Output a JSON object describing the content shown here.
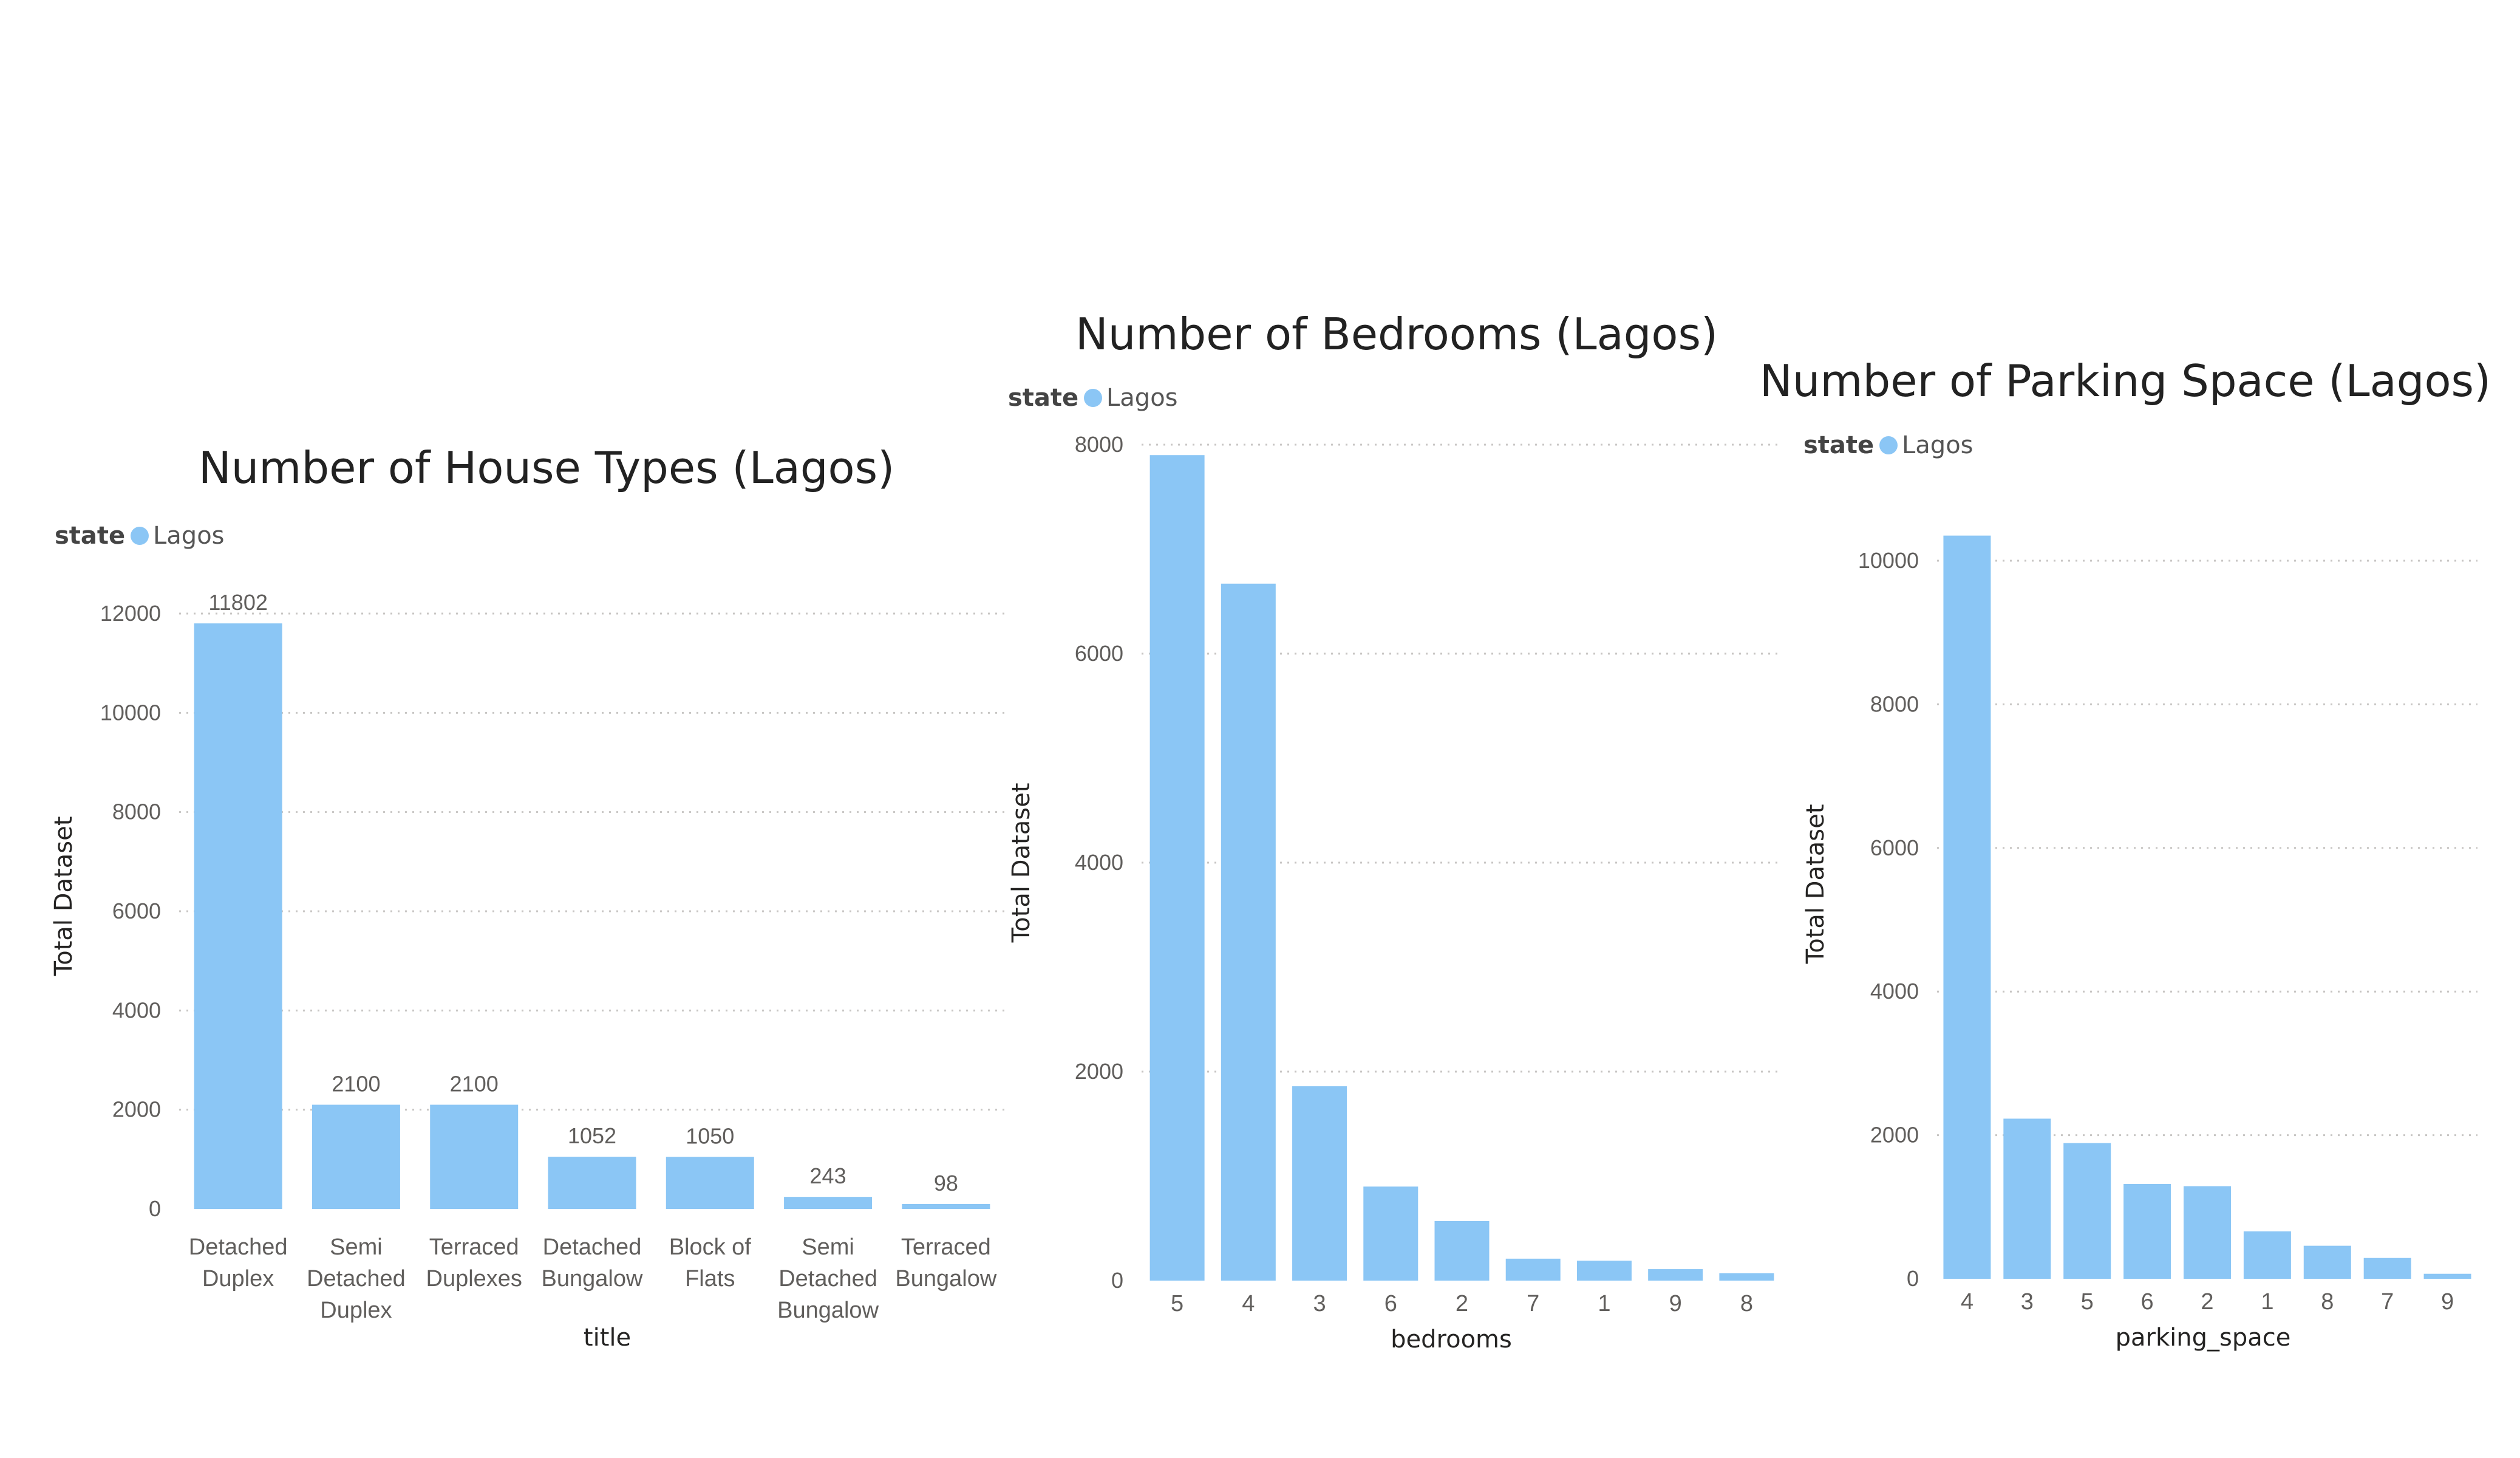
{
  "colors": {
    "bar": "#8bc6f5",
    "legend_dot": "#8bc6f5",
    "grid": "#c8c6c4"
  },
  "chart_data": [
    {
      "type": "bar",
      "title": "Number of House Types (Lagos)",
      "legend_title": "state",
      "legend_placement": "top-left",
      "series": [
        {
          "name": "Lagos",
          "values": [
            11802,
            2100,
            2100,
            1052,
            1050,
            243,
            98
          ]
        }
      ],
      "categories": [
        [
          "Detached",
          "Duplex"
        ],
        [
          "Semi",
          "Detached",
          "Duplex"
        ],
        [
          "Terraced",
          "Duplexes"
        ],
        [
          "Detached",
          "Bungalow"
        ],
        [
          "Block of",
          "Flats"
        ],
        [
          "Semi",
          "Detached",
          "Bungalow"
        ],
        [
          "Terraced",
          "Bungalow"
        ]
      ],
      "data_labels": [
        "11802",
        "2100",
        "2100",
        "1052",
        "1050",
        "243",
        "98"
      ],
      "xlabel": "title",
      "ylabel": "Total Dataset",
      "ylim": [
        0,
        12000
      ],
      "yticks": [
        0,
        2000,
        4000,
        6000,
        8000,
        10000,
        12000
      ],
      "grid": true
    },
    {
      "type": "bar",
      "title": "Number of Bedrooms (Lagos)",
      "legend_title": "state",
      "legend_placement": "top-left",
      "series": [
        {
          "name": "Lagos",
          "values": [
            7900,
            6670,
            1860,
            900,
            570,
            210,
            190,
            110,
            70
          ]
        }
      ],
      "categories": [
        "5",
        "4",
        "3",
        "6",
        "2",
        "7",
        "1",
        "9",
        "8"
      ],
      "xlabel": "bedrooms",
      "ylabel": "Total Dataset",
      "ylim": [
        0,
        8000
      ],
      "yticks": [
        0,
        2000,
        4000,
        6000,
        8000
      ],
      "grid": true
    },
    {
      "type": "bar",
      "title": "Number of Parking Space (Lagos)",
      "legend_title": "state",
      "legend_placement": "top-left",
      "series": [
        {
          "name": "Lagos",
          "values": [
            10350,
            2230,
            1890,
            1320,
            1290,
            660,
            460,
            290,
            70
          ]
        }
      ],
      "categories": [
        "4",
        "3",
        "5",
        "6",
        "2",
        "1",
        "8",
        "7",
        "9"
      ],
      "xlabel": "parking_space",
      "ylabel": "Total Dataset",
      "ylim": [
        0,
        10500
      ],
      "yticks": [
        0,
        2000,
        4000,
        6000,
        8000,
        10000
      ],
      "grid": true
    }
  ]
}
